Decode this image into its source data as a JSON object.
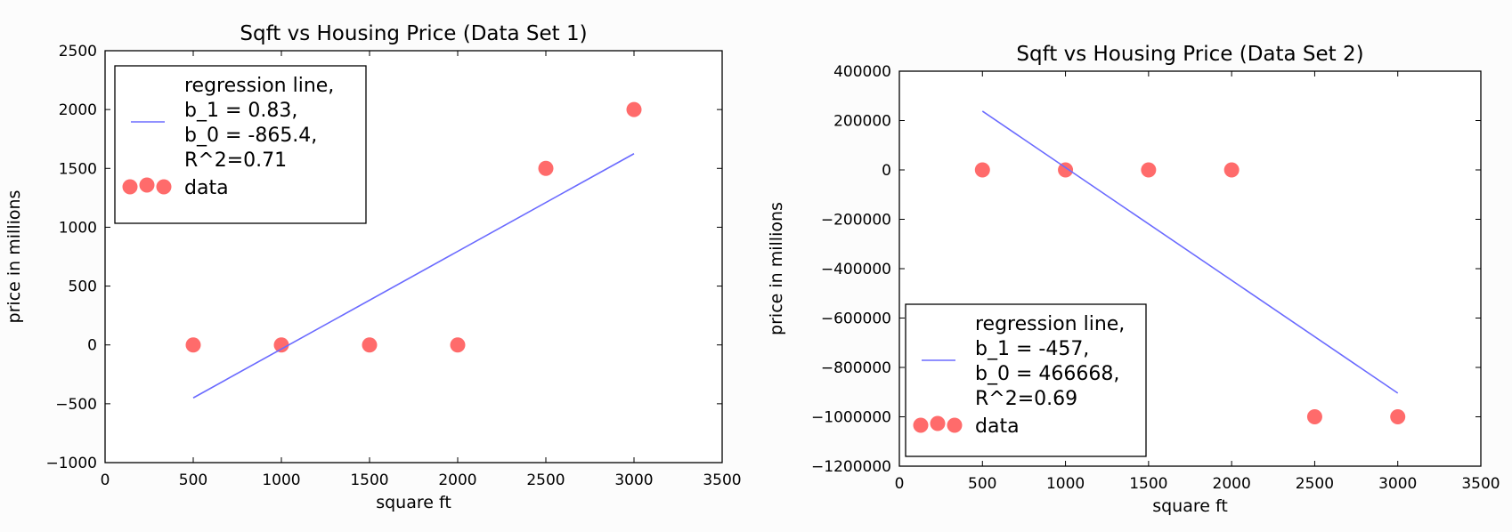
{
  "chart_data": [
    {
      "type": "scatter",
      "title": "Sqft vs Housing Price (Data Set 1)",
      "xlabel": "square ft",
      "ylabel": "price in millions",
      "xlim": [
        0,
        3500
      ],
      "ylim": [
        -1000,
        2500
      ],
      "xticks": [
        "0",
        "500",
        "1000",
        "1500",
        "2000",
        "2500",
        "3000",
        "3500"
      ],
      "yticks": [
        "−1000",
        "−500",
        "0",
        "500",
        "1000",
        "1500",
        "2000",
        "2500"
      ],
      "legend_position": "top-left",
      "series": [
        {
          "name": "data",
          "kind": "scatter",
          "color": "#ff6b6b",
          "x": [
            500,
            1000,
            1500,
            2000,
            2500,
            3000
          ],
          "y": [
            0,
            0,
            0,
            0,
            1500,
            2000
          ]
        },
        {
          "name": "regression line, b_1 = 0.83, b_0 = -865.4, R^2=0.71",
          "legend_lines": [
            "regression line,",
            "b_1 = 0.83,",
            "b_0 = -865.4,",
            "R^2=0.71"
          ],
          "kind": "line",
          "color": "#6b6bff",
          "x": [
            500,
            3000
          ],
          "y": [
            -450,
            1625
          ]
        }
      ]
    },
    {
      "type": "scatter",
      "title": "Sqft vs Housing Price (Data Set 2)",
      "xlabel": "square ft",
      "ylabel": "price in millions",
      "xlim": [
        0,
        3500
      ],
      "ylim": [
        -1200000,
        400000
      ],
      "xticks": [
        "0",
        "500",
        "1000",
        "1500",
        "2000",
        "2500",
        "3000",
        "3500"
      ],
      "yticks": [
        "−1200000",
        "−1000000",
        "−800000",
        "−600000",
        "−400000",
        "−200000",
        "0",
        "200000",
        "400000"
      ],
      "legend_position": "bottom-left",
      "series": [
        {
          "name": "data",
          "kind": "scatter",
          "color": "#ff6b6b",
          "x": [
            500,
            1000,
            1500,
            2000,
            2500,
            3000
          ],
          "y": [
            0,
            0,
            0,
            0,
            -1000000,
            -1000000
          ]
        },
        {
          "name": "regression line, b_1 = -457, b_0 = 466668, R^2=0.69",
          "legend_lines": [
            "regression line,",
            "b_1 = -457,",
            "b_0 = 466668,",
            "R^2=0.69"
          ],
          "kind": "line",
          "color": "#6b6bff",
          "x": [
            500,
            3000
          ],
          "y": [
            238000,
            -904000
          ]
        }
      ]
    }
  ]
}
